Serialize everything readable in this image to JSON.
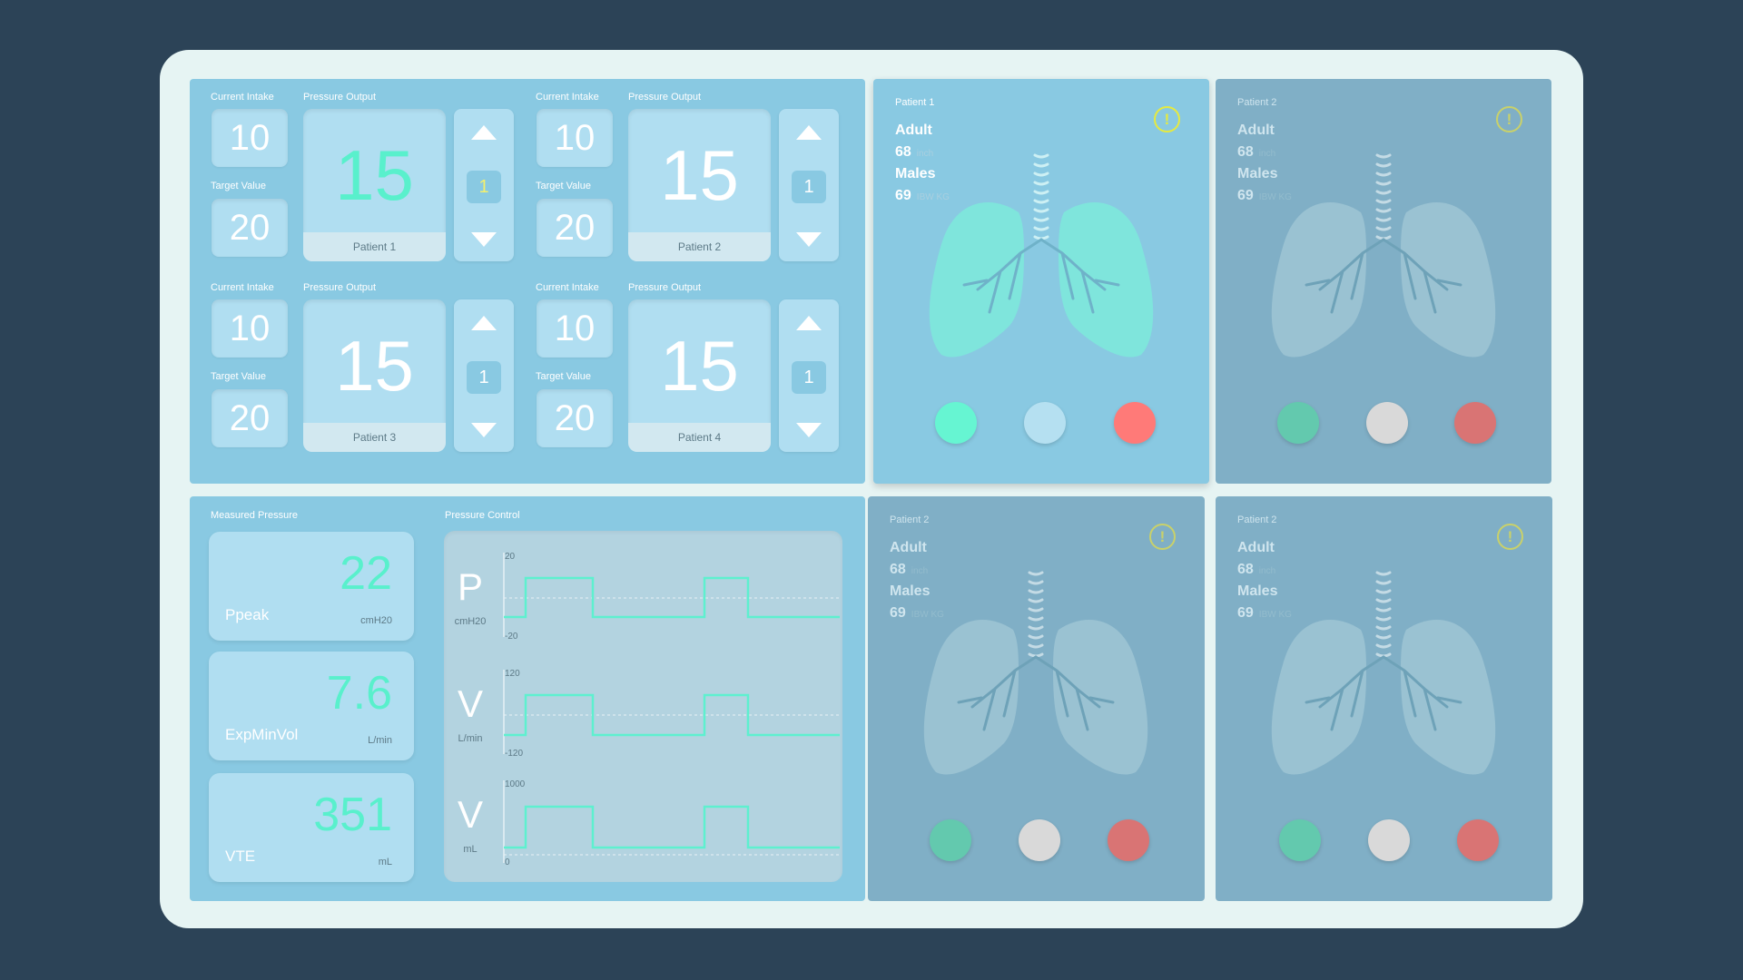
{
  "controls": {
    "current_intake_label": "Current Intake",
    "pressure_output_label": "Pressure Output",
    "target_value_label": "Target Value",
    "groups": [
      {
        "patient": "Patient 1",
        "current_intake": "10",
        "target_value": "20",
        "pressure_output": "15",
        "step": "1"
      },
      {
        "patient": "Patient 2",
        "current_intake": "10",
        "target_value": "20",
        "pressure_output": "15",
        "step": "1"
      },
      {
        "patient": "Patient 3",
        "current_intake": "10",
        "target_value": "20",
        "pressure_output": "15",
        "step": "1"
      },
      {
        "patient": "Patient 4",
        "current_intake": "10",
        "target_value": "20",
        "pressure_output": "15",
        "step": "1"
      }
    ]
  },
  "measured": {
    "label": "Measured Pressure",
    "items": [
      {
        "value": "22",
        "name": "Ppeak",
        "unit": "cmH20"
      },
      {
        "value": "7.6",
        "name": "ExpMinVol",
        "unit": "L/min"
      },
      {
        "value": "351",
        "name": "VTE",
        "unit": "mL"
      }
    ]
  },
  "pressure_control": {
    "label": "Pressure Control",
    "waves": [
      {
        "letter": "P",
        "unit": "cmH20",
        "top": "20",
        "bottom": "-20"
      },
      {
        "letter": "V",
        "unit": "L/min",
        "top": "120",
        "bottom": "-120"
      },
      {
        "letter": "V",
        "unit": "mL",
        "top": "1000",
        "bottom": "0"
      }
    ]
  },
  "patients": [
    {
      "name": "Patient 1",
      "age_group": "Adult",
      "height": "68",
      "height_unit": "inch",
      "sex": "Males",
      "weight": "69",
      "weight_unit": "IBW KG",
      "active": true
    },
    {
      "name": "Patient 2",
      "age_group": "Adult",
      "height": "68",
      "height_unit": "inch",
      "sex": "Males",
      "weight": "69",
      "weight_unit": "IBW KG",
      "active": false
    },
    {
      "name": "Patient 2",
      "age_group": "Adult",
      "height": "68",
      "height_unit": "inch",
      "sex": "Males",
      "weight": "69",
      "weight_unit": "IBW KG",
      "active": false
    },
    {
      "name": "Patient 2",
      "age_group": "Adult",
      "height": "68",
      "height_unit": "inch",
      "sex": "Males",
      "weight": "69",
      "weight_unit": "IBW KG",
      "active": false
    }
  ],
  "colors": {
    "background": "#2c4357",
    "frame": "#e6f4f3",
    "panel": "#89c9e2",
    "panel_dim": "#80afc6",
    "accent": "#59f0cc",
    "warning": "#e6ea3f",
    "status_green_active": "#66f5d2",
    "status_gray_active": "#b5e0f1",
    "status_red_active": "#ff7a78",
    "status_green_dim": "#63c9ae",
    "status_gray_dim": "#d9d9d9",
    "status_red_dim": "#d97474"
  },
  "icons": [
    "up-arrow-icon",
    "down-arrow-icon",
    "warning-icon",
    "lungs-icon"
  ]
}
